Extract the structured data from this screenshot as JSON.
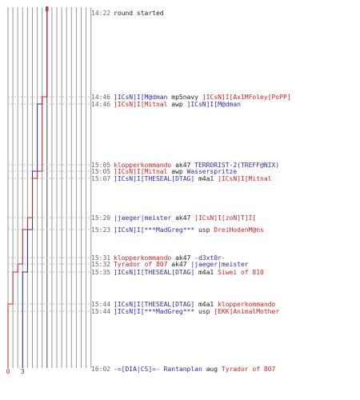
{
  "chart_data": {
    "type": "line",
    "x_label": "",
    "y_label": "",
    "colors": {
      "team_a": "#2b2bb5",
      "team_b": "#d42020",
      "event_neutral": "#222222",
      "time": "#666666",
      "grid": "#9a9a9a",
      "grid_strong": "#4a4a4a"
    },
    "series": [
      {
        "key": "blue",
        "start": 8,
        "end": 3,
        "values": [
          8,
          7,
          6,
          6,
          5,
          5,
          5,
          4,
          4,
          4,
          3,
          3,
          3
        ]
      },
      {
        "key": "red",
        "start": 8,
        "end": 0,
        "values": [
          8,
          7,
          7,
          7,
          6,
          5,
          4,
          3,
          3,
          2,
          1,
          0,
          0
        ]
      }
    ],
    "events": [
      {
        "time": "14:22",
        "parts": [
          {
            "t": "round started",
            "c": "neutral"
          }
        ]
      },
      {
        "time": "14:46",
        "parts": [
          {
            "t": "]ICsN]I[M@dman",
            "c": "team_a"
          },
          {
            "t": " mp5navy ",
            "c": "neutral"
          },
          {
            "t": "]ICsN]I[Ax1MFoley[PoPP]",
            "c": "team_b"
          }
        ]
      },
      {
        "time": "14:46",
        "parts": [
          {
            "t": "]ICsN]I[Mitnal",
            "c": "team_b"
          },
          {
            "t": " awp ",
            "c": "neutral"
          },
          {
            "t": "]ICsN]I[M@dman",
            "c": "team_a"
          }
        ]
      },
      {
        "time": "15:05",
        "parts": [
          {
            "t": "klopperkommando",
            "c": "team_b"
          },
          {
            "t": " ak47 ",
            "c": "neutral"
          },
          {
            "t": "TERRORIST-2(TREFF@NIX)",
            "c": "team_a"
          }
        ]
      },
      {
        "time": "15:05",
        "parts": [
          {
            "t": "]ICsN]I[Mitnal",
            "c": "team_b"
          },
          {
            "t": " awp ",
            "c": "neutral"
          },
          {
            "t": "Wasserspritze",
            "c": "team_a"
          }
        ]
      },
      {
        "time": "15:07",
        "parts": [
          {
            "t": "]ICsN]I[THESEAL[DTAG]",
            "c": "team_a"
          },
          {
            "t": " m4a1 ",
            "c": "neutral"
          },
          {
            "t": "]ICsN]I[Mitnal",
            "c": "team_b"
          }
        ]
      },
      {
        "time": "15:20",
        "parts": [
          {
            "t": "|jaeger|meister",
            "c": "team_a"
          },
          {
            "t": " ak47 ",
            "c": "neutral"
          },
          {
            "t": "]ICsN]I[zoN]T]I[",
            "c": "team_b"
          }
        ]
      },
      {
        "time": "15:23",
        "parts": [
          {
            "t": "]ICsN]I[***MadGreg***",
            "c": "team_a"
          },
          {
            "t": " usp ",
            "c": "neutral"
          },
          {
            "t": "DreiHodenM@ns",
            "c": "team_b"
          }
        ]
      },
      {
        "time": "15:31",
        "parts": [
          {
            "t": "klopperkommando",
            "c": "team_b"
          },
          {
            "t": " ak47 ",
            "c": "neutral"
          },
          {
            "t": "-d3xt0r-",
            "c": "team_a"
          }
        ]
      },
      {
        "time": "15:32",
        "parts": [
          {
            "t": "Tyrador of 807",
            "c": "team_b"
          },
          {
            "t": " ak47 ",
            "c": "neutral"
          },
          {
            "t": "|jaeger|meister",
            "c": "team_a"
          }
        ]
      },
      {
        "time": "15:35",
        "parts": [
          {
            "t": "]ICsN]I[THESEAL[DTAG]",
            "c": "team_a"
          },
          {
            "t": " m4a1 ",
            "c": "neutral"
          },
          {
            "t": "Siwei of 810",
            "c": "team_b"
          }
        ]
      },
      {
        "time": "15:44",
        "parts": [
          {
            "t": "]ICsN]I[THESEAL[DTAG]",
            "c": "team_a"
          },
          {
            "t": " m4a1 ",
            "c": "neutral"
          },
          {
            "t": "klopperkommando",
            "c": "team_b"
          }
        ]
      },
      {
        "time": "15:44",
        "parts": [
          {
            "t": "]ICsN]I[***MadGreg***",
            "c": "team_a"
          },
          {
            "t": " usp ",
            "c": "neutral"
          },
          {
            "t": "[EKK]AnimalMother",
            "c": "team_b"
          }
        ]
      },
      {
        "time": "16:02",
        "parts": [
          {
            "t": "-=[DIA|CS]=- Rantanplan",
            "c": "team_a"
          },
          {
            "t": " aug ",
            "c": "neutral"
          },
          {
            "t": "Tyrador of 807",
            "c": "team_b"
          }
        ]
      }
    ]
  }
}
